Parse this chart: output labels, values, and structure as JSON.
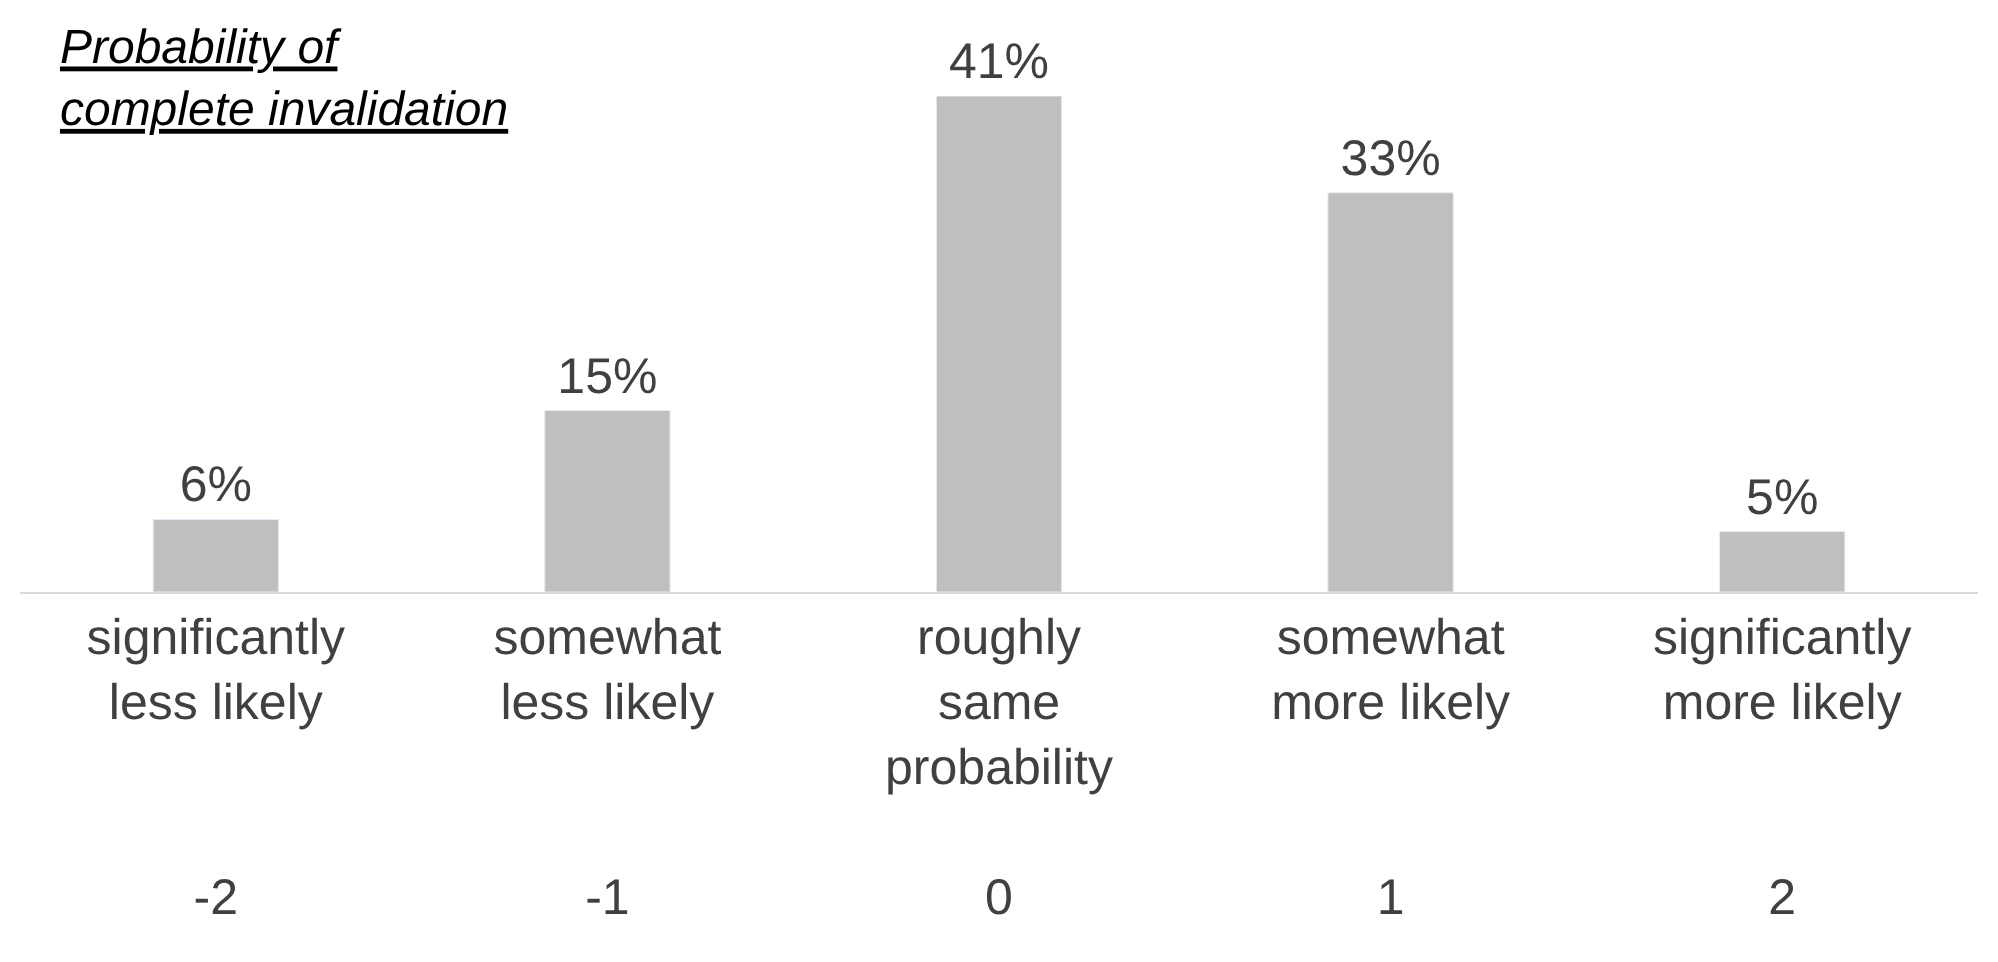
{
  "chart_data": {
    "type": "bar",
    "title": "Probability of\ncomplete invalidation",
    "categories": [
      "significantly\nless likely\n\n\n-2",
      "somewhat\nless likely\n\n\n-1",
      "roughly\nsame\nprobability\n\n0",
      "somewhat\nmore likely\n\n\n1",
      "significantly\nmore likely\n\n\n2"
    ],
    "values": [
      6,
      15,
      41,
      33,
      5
    ],
    "value_labels": [
      "6%",
      "15%",
      "41%",
      "33%",
      "5%"
    ],
    "color": "#bfbfbf"
  }
}
